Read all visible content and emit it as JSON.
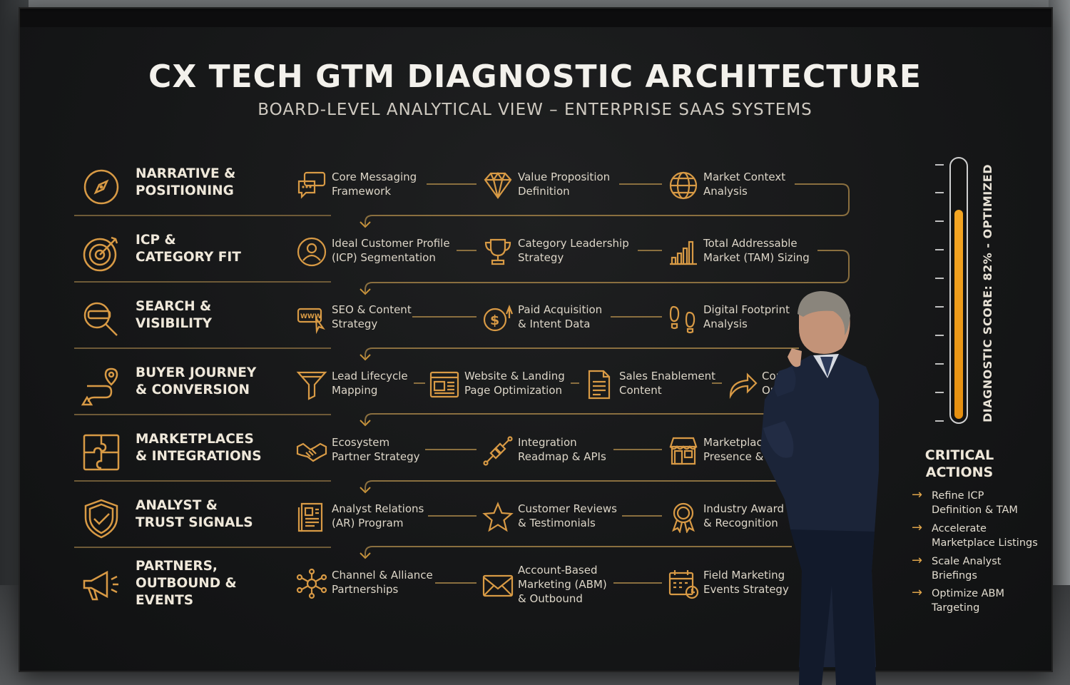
{
  "board": {
    "title": "CX TECH GTM DIAGNOSTIC ARCHITECTURE",
    "subtitle": "BOARD-LEVEL ANALYTICAL VIEW – ENTERPRISE SAAS SYSTEMS"
  },
  "rows": [
    {
      "category": "NARRATIVE &\nPOSITIONING",
      "category_icon": "compass-icon",
      "items": [
        {
          "label": "Core Messaging\nFramework",
          "icon": "chat-bubbles-icon"
        },
        {
          "label": "Value Proposition\nDefinition",
          "icon": "diamond-icon"
        },
        {
          "label": "Market Context\nAnalysis",
          "icon": "globe-icon"
        }
      ]
    },
    {
      "category": "ICP &\nCATEGORY FIT",
      "category_icon": "target-icon",
      "items": [
        {
          "label": "Ideal Customer Profile\n(ICP) Segmentation",
          "icon": "user-profile-icon"
        },
        {
          "label": "Category Leadership\nStrategy",
          "icon": "trophy-icon"
        },
        {
          "label": "Total Addressable\nMarket (TAM) Sizing",
          "icon": "bar-chart-icon"
        }
      ]
    },
    {
      "category": "SEARCH &\nVISIBILITY",
      "category_icon": "magnifier-icon",
      "items": [
        {
          "label": "SEO & Content\nStrategy",
          "icon": "www-cursor-icon"
        },
        {
          "label": "Paid Acquisition\n& Intent Data",
          "icon": "dollar-icon"
        },
        {
          "label": "Digital Footprint\nAnalysis",
          "icon": "footprints-icon"
        }
      ]
    },
    {
      "category": "BUYER JOURNEY\n& CONVERSION",
      "category_icon": "journey-path-icon",
      "items": [
        {
          "label": "Lead Lifecycle\nMapping",
          "icon": "funnel-icon"
        },
        {
          "label": "Website & Landing\nPage Optimization",
          "icon": "webpage-icon"
        },
        {
          "label": "Sales Enablement\nContent",
          "icon": "document-icon"
        },
        {
          "label": "Con\nOpt",
          "icon": "share-arrow-icon"
        }
      ]
    },
    {
      "category": "MARKETPLACES\n& INTEGRATIONS",
      "category_icon": "puzzle-icon",
      "items": [
        {
          "label": "Ecosystem\nPartner Strategy",
          "icon": "handshake-icon"
        },
        {
          "label": "Integration\nReadmap & APIs",
          "icon": "api-connector-icon"
        },
        {
          "label": "Marketplac\nPresence & Pr",
          "icon": "storefront-icon"
        }
      ]
    },
    {
      "category": "ANALYST &\nTRUST SIGNALS",
      "category_icon": "shield-check-icon",
      "items": [
        {
          "label": "Analyst Relations\n(AR) Program",
          "icon": "report-icon"
        },
        {
          "label": "Customer Reviews\n& Testimonials",
          "icon": "star-icon"
        },
        {
          "label": "Industry Award\n& Recognition",
          "icon": "award-ribbon-icon"
        }
      ]
    },
    {
      "category": "PARTNERS,\nOUTBOUND &\nEVENTS",
      "category_icon": "megaphone-icon",
      "items": [
        {
          "label": "Channel & Alliance\nPartnerships",
          "icon": "network-hub-icon"
        },
        {
          "label": "Account-Based\nMarketing (ABM)\n& Outbound",
          "icon": "envelope-icon"
        },
        {
          "label": "Field Marketing\nEvents Strategy",
          "icon": "calendar-icon"
        }
      ]
    }
  ],
  "diagnostic": {
    "label": "DIAGNOSTIC SCORE: 82% - OPTIMIZED",
    "score_percent": 82
  },
  "critical_actions": {
    "title": "CRITICAL\nACTIONS",
    "items": [
      "Refine ICP\nDefinition & TAM",
      "Accelerate\nMarketplace Listings",
      "Scale Analyst\nBriefings",
      "Optimize ABM\nTargeting"
    ]
  },
  "colors": {
    "accent_gold": "#c8933a",
    "gauge_orange": "#f5a623",
    "board_background": "#161718"
  }
}
